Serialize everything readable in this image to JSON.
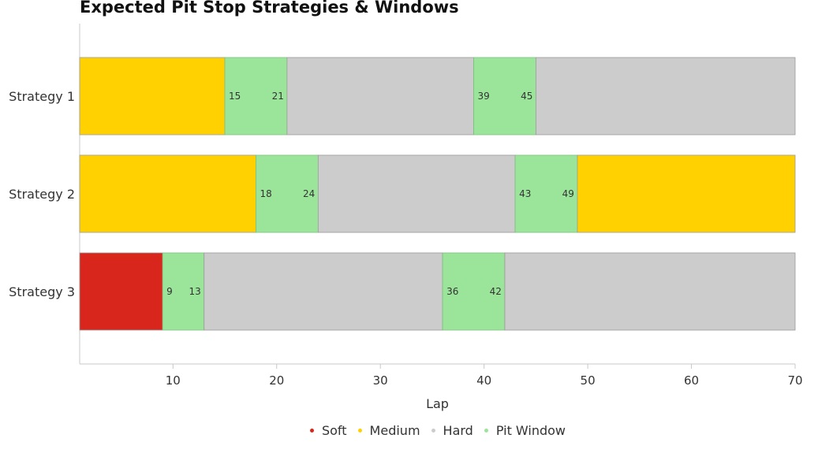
{
  "chart_data": {
    "type": "bar",
    "orientation": "horizontal-stacked",
    "title": "Expected Pit Stop Strategies & Windows",
    "xlabel": "Lap",
    "ylabel": "",
    "xlim": [
      1,
      70
    ],
    "xticks": [
      10,
      20,
      30,
      40,
      50,
      60,
      70
    ],
    "grid": false,
    "legend_position": "bottom-center",
    "categories": [
      "Strategy 1",
      "Strategy 2",
      "Strategy 3"
    ],
    "compounds": [
      {
        "name": "Soft",
        "color": "#d9261c"
      },
      {
        "name": "Medium",
        "color": "#ffd100"
      },
      {
        "name": "Hard",
        "color": "#cccccc"
      },
      {
        "name": "Pit Window",
        "color": "#9be59b"
      }
    ],
    "strategies": [
      {
        "name": "Strategy 1",
        "segments": [
          {
            "type": "Medium",
            "start": 1,
            "end": 15
          },
          {
            "type": "Pit Window",
            "start": 15,
            "end": 21
          },
          {
            "type": "Hard",
            "start": 21,
            "end": 39
          },
          {
            "type": "Pit Window",
            "start": 39,
            "end": 45
          },
          {
            "type": "Hard",
            "start": 45,
            "end": 70
          }
        ]
      },
      {
        "name": "Strategy 2",
        "segments": [
          {
            "type": "Medium",
            "start": 1,
            "end": 18
          },
          {
            "type": "Pit Window",
            "start": 18,
            "end": 24
          },
          {
            "type": "Hard",
            "start": 24,
            "end": 43
          },
          {
            "type": "Pit Window",
            "start": 43,
            "end": 49
          },
          {
            "type": "Medium",
            "start": 49,
            "end": 70
          }
        ]
      },
      {
        "name": "Strategy 3",
        "segments": [
          {
            "type": "Soft",
            "start": 1,
            "end": 9
          },
          {
            "type": "Pit Window",
            "start": 9,
            "end": 13
          },
          {
            "type": "Hard",
            "start": 13,
            "end": 36
          },
          {
            "type": "Pit Window",
            "start": 36,
            "end": 42
          },
          {
            "type": "Hard",
            "start": 42,
            "end": 70
          }
        ]
      }
    ]
  }
}
